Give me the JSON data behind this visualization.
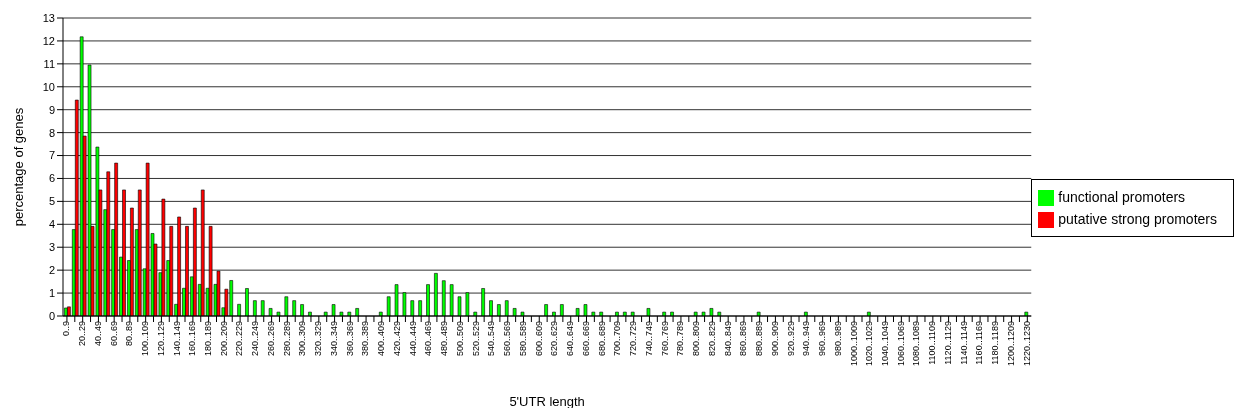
{
  "chart_data": {
    "type": "bar",
    "xlabel": "5'UTR length",
    "ylabel": "percentage of genes",
    "categories": [
      "0..9",
      null,
      "20..29",
      null,
      "40..49",
      null,
      "60..69",
      null,
      "80..89",
      null,
      "100..109",
      null,
      "120..129",
      null,
      "140..149",
      null,
      "160..169",
      null,
      "180..189",
      null,
      "200..209",
      null,
      "220..229",
      null,
      "240..249",
      null,
      "260..269",
      null,
      "280..289",
      null,
      "300..309",
      null,
      "320..329",
      null,
      "340..349",
      null,
      "360..369",
      null,
      "380..389",
      null,
      "400..409",
      null,
      "420..429",
      null,
      "440..449",
      null,
      "460..469",
      null,
      "480..489",
      null,
      "500..509",
      null,
      "520..529",
      null,
      "540..549",
      null,
      "560..569",
      null,
      "580..589",
      null,
      "600..609",
      null,
      "620..629",
      null,
      "640..649",
      null,
      "660..669",
      null,
      "680..689",
      null,
      "700..709",
      null,
      "720..729",
      null,
      "740..749",
      null,
      "760..769",
      null,
      "780..789",
      null,
      "800..809",
      null,
      "820..829",
      null,
      "840..849",
      null,
      "860..869",
      null,
      "880..889",
      null,
      "900..909",
      null,
      "920..929",
      null,
      "940..949",
      null,
      "960..969",
      null,
      "980..989",
      null,
      "1000..1009",
      null,
      "1020..1029",
      null,
      "1040..1049",
      null,
      "1060..1069",
      null,
      "1080..1089",
      null,
      "1100..1109",
      null,
      "1120..1129",
      null,
      "1140..1149",
      null,
      "1160..1169",
      null,
      "1180..1189",
      null,
      "1200..1209",
      null,
      "1220..1230"
    ],
    "series": [
      {
        "name": "functional promoters",
        "color": "#00ff00",
        "values": [
          0.35,
          3.77,
          12.18,
          10.95,
          7.37,
          4.64,
          3.77,
          2.57,
          2.42,
          3.77,
          2.06,
          3.6,
          1.89,
          2.42,
          0.51,
          1.21,
          1.71,
          1.38,
          1.21,
          1.38,
          0.36,
          1.55,
          0.51,
          1.2,
          0.67,
          0.67,
          0.33,
          0.17,
          0.84,
          0.67,
          0.5,
          0.17,
          0,
          0.17,
          0.5,
          0.17,
          0.17,
          0.33,
          0,
          0,
          0.17,
          0.84,
          1.37,
          1.02,
          0.67,
          0.67,
          1.37,
          1.86,
          1.54,
          1.37,
          0.84,
          1.02,
          0.17,
          1.2,
          0.67,
          0.5,
          0.67,
          0.33,
          0.17,
          0,
          0,
          0.5,
          0.17,
          0.5,
          0,
          0.33,
          0.5,
          0.17,
          0.17,
          0,
          0.17,
          0.17,
          0.17,
          0,
          0.33,
          0,
          0.17,
          0.17,
          0,
          0,
          0.17,
          0.17,
          0.33,
          0.17,
          0,
          0,
          0,
          0,
          0.17,
          0,
          0,
          0,
          0,
          0,
          0.17,
          0,
          0,
          0,
          0,
          0,
          0,
          0,
          0.17,
          0,
          0,
          0,
          0,
          0,
          0,
          0,
          0,
          0,
          0,
          0,
          0,
          0,
          0,
          0,
          0,
          0,
          0,
          0,
          0.17
        ]
      },
      {
        "name": "putative strong promoters",
        "color": "#ff0000",
        "values": [
          0.4,
          9.42,
          7.85,
          3.91,
          5.5,
          6.29,
          6.67,
          5.5,
          4.71,
          5.5,
          6.67,
          3.14,
          5.1,
          3.91,
          4.32,
          3.91,
          4.71,
          5.5,
          3.91,
          1.96,
          1.17,
          0,
          0,
          0,
          0,
          0,
          0,
          0,
          0,
          0,
          0,
          0,
          0,
          0,
          0,
          0,
          0,
          0,
          0,
          0,
          0,
          0,
          0,
          0,
          0,
          0,
          0,
          0,
          0,
          0,
          0,
          0,
          0,
          0,
          0,
          0,
          0,
          0,
          0,
          0,
          0,
          0,
          0,
          0,
          0,
          0,
          0,
          0,
          0,
          0,
          0,
          0,
          0,
          0,
          0,
          0,
          0,
          0,
          0,
          0,
          0,
          0,
          0,
          0,
          0,
          0,
          0,
          0,
          0,
          0,
          0,
          0,
          0,
          0,
          0,
          0,
          0,
          0,
          0,
          0,
          0,
          0,
          0,
          0,
          0,
          0,
          0,
          0,
          0,
          0,
          0,
          0,
          0,
          0,
          0,
          0,
          0,
          0,
          0,
          0,
          0,
          0,
          0
        ]
      }
    ],
    "ylim": [
      0,
      13
    ],
    "yticks": [
      0,
      1,
      2,
      3,
      4,
      5,
      6,
      7,
      8,
      9,
      10,
      11,
      12,
      13
    ],
    "grid": "y",
    "legend": "right"
  }
}
